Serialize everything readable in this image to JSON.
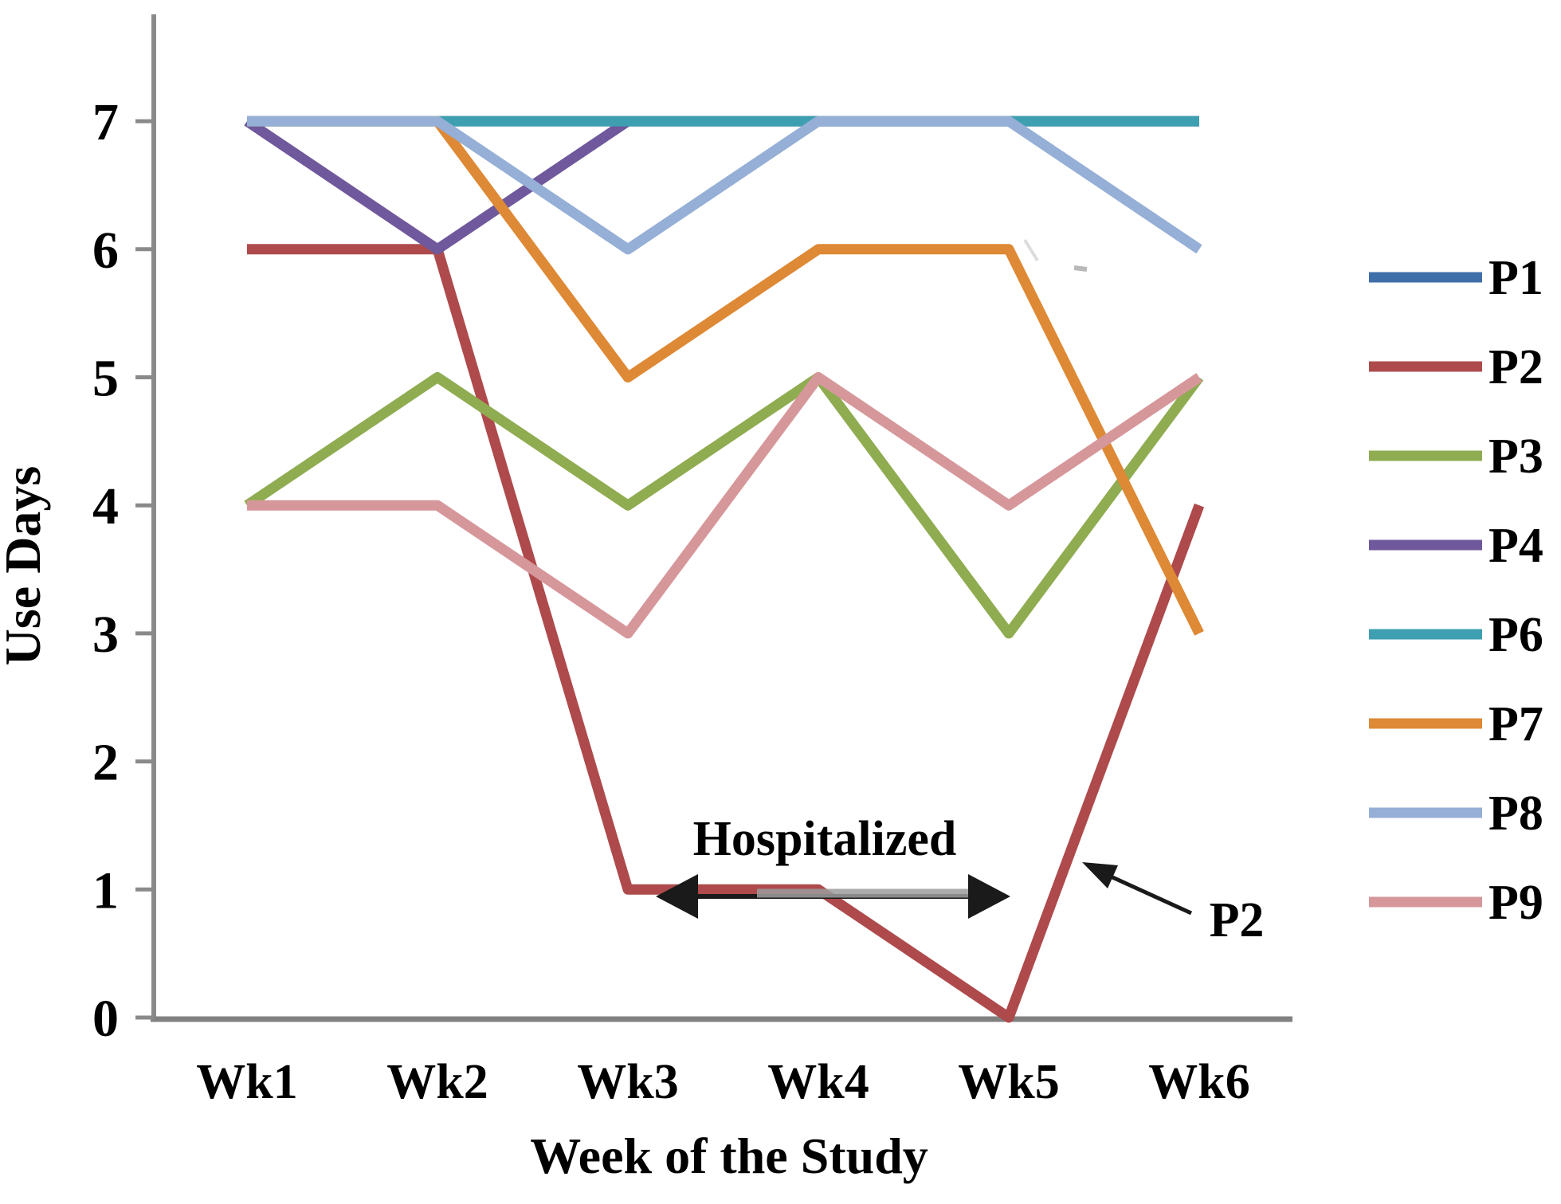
{
  "figure": {
    "background": "#ffffff",
    "axis_color": "#8a8a8a",
    "text_color": "#000000"
  },
  "chart_data": {
    "type": "line",
    "title": "",
    "xlabel": "Week of the Study",
    "ylabel": "Use Days",
    "categories": [
      "Wk1",
      "Wk2",
      "Wk3",
      "Wk4",
      "Wk5",
      "Wk6"
    ],
    "y_ticks": [
      "0",
      "1",
      "2",
      "3",
      "4",
      "5",
      "6",
      "7"
    ],
    "ylim": [
      0,
      7
    ],
    "grid": false,
    "legend_position": "right",
    "series": [
      {
        "name": "P1",
        "color": "#3F6FA8",
        "values": [
          7,
          7,
          7,
          7,
          7,
          7
        ]
      },
      {
        "name": "P2",
        "color": "#AE4A4C",
        "values": [
          6,
          6,
          1,
          1,
          0,
          4
        ]
      },
      {
        "name": "P3",
        "color": "#8FAC51",
        "values": [
          4,
          5,
          4,
          5,
          3,
          5
        ]
      },
      {
        "name": "P4",
        "color": "#6F589B",
        "values": [
          7,
          6,
          7,
          7,
          7,
          7
        ]
      },
      {
        "name": "P6",
        "color": "#3D9FB0",
        "values": [
          7,
          7,
          7,
          7,
          7,
          7
        ]
      },
      {
        "name": "P7",
        "color": "#DE8935",
        "values": [
          7,
          7,
          5,
          6,
          6,
          3
        ]
      },
      {
        "name": "P8",
        "color": "#95AFD6",
        "values": [
          7,
          7,
          6,
          7,
          7,
          6
        ]
      },
      {
        "name": "P9",
        "color": "#D6979B",
        "values": [
          4,
          4,
          3,
          5,
          4,
          5
        ]
      }
    ],
    "annotations": [
      {
        "id": "hospitalized",
        "text": "Hospitalized",
        "type": "span-arrow",
        "from_week": "Wk3",
        "to_week": "Wk5",
        "at_value": 1
      },
      {
        "id": "p2-callout",
        "text": "P2",
        "type": "arrow-callout",
        "points_to_series": "P2"
      }
    ]
  }
}
